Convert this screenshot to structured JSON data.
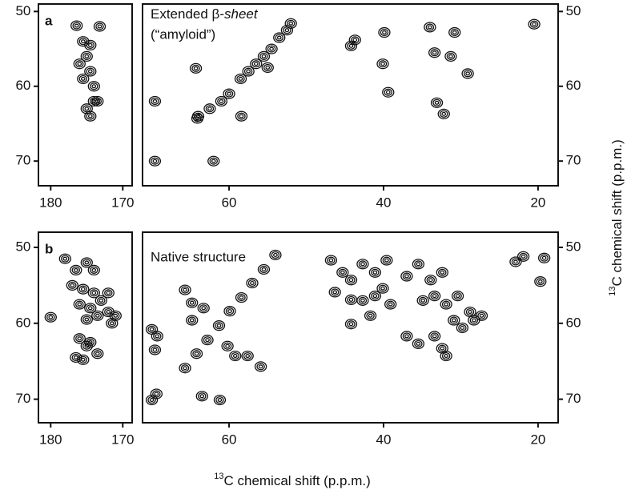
{
  "chart_data": [
    {
      "type": "contour",
      "panel_label": "a",
      "x": [
        176.4,
        175.5,
        175,
        174.5,
        175.5,
        174,
        176,
        174.5,
        173.2,
        174,
        175,
        174.5,
        173.5
      ],
      "y": [
        51.9,
        54,
        56,
        58,
        59,
        60,
        57,
        54.5,
        52,
        62,
        63,
        64,
        62
      ],
      "xlim": [
        181.7,
        168.7
      ],
      "xticks": [
        180,
        170
      ],
      "ylim": [
        49,
        73.3
      ],
      "yticks": [
        50,
        60,
        70
      ],
      "color": "#111111"
    },
    {
      "type": "contour",
      "annotation": [
        "Extended β-",
        "sheet",
        "(“amyloid”)"
      ],
      "ylabel": [
        "13",
        "C chemical shift (p.p.m.)"
      ],
      "x": [
        69.6,
        69.6,
        64.3,
        64.1,
        64,
        62.5,
        61,
        60,
        62,
        58.4,
        58.5,
        57.5,
        56.5,
        55.5,
        54.5,
        53.5,
        52.5,
        52,
        55,
        43.7,
        44.2,
        39.9,
        40.1,
        39.4,
        33.4,
        31.3,
        30.8,
        33.1,
        32.2,
        29.1,
        20.5,
        34
      ],
      "y": [
        62,
        70,
        57.6,
        64.3,
        64,
        63,
        62,
        61,
        70,
        64,
        59,
        58,
        57,
        56,
        55,
        53.5,
        52.5,
        51.6,
        57.5,
        53.8,
        54.6,
        52.8,
        57,
        60.8,
        55.5,
        56,
        52.8,
        62.2,
        63.7,
        58.3,
        51.7,
        52.1
      ],
      "xlim": [
        71.2,
        17.4
      ],
      "xticks": [
        60,
        40,
        20
      ],
      "ylim": [
        49,
        73.3
      ],
      "yticks": [
        50,
        60,
        70
      ],
      "color": "#111111"
    },
    {
      "type": "contour",
      "panel_label": "b",
      "x": [
        178,
        176.5,
        175,
        174,
        177,
        175.5,
        174,
        176,
        174.5,
        173,
        175,
        173.5,
        172,
        171,
        180,
        176,
        175,
        174.5,
        176.5,
        175.5,
        173.5,
        171.5,
        172
      ],
      "y": [
        51.5,
        53,
        52,
        53,
        55,
        55.5,
        56,
        57.5,
        58,
        57,
        59.5,
        59,
        58.5,
        59,
        59.2,
        62,
        63,
        62.5,
        64.5,
        64.8,
        64,
        60,
        56
      ],
      "xlim": [
        181.7,
        168.7
      ],
      "xticks": [
        180,
        170
      ],
      "ylim": [
        48,
        73.1
      ],
      "yticks": [
        50,
        60,
        70
      ],
      "color": "#111111"
    },
    {
      "type": "contour",
      "annotation": [
        "Native structure"
      ],
      "xlabel": [
        "13",
        "C chemical shift (p.p.m.)"
      ],
      "x": [
        65.7,
        64.2,
        62.8,
        61.3,
        59.9,
        58.4,
        57,
        55.5,
        54,
        70,
        69.3,
        69.6,
        69.4,
        70,
        65.7,
        64.8,
        64.8,
        63.3,
        63.5,
        61.2,
        60.2,
        59.2,
        57.6,
        55.9,
        46.8,
        45.3,
        44.2,
        42.7,
        41.1,
        46.3,
        44.2,
        42.7,
        41.1,
        40.1,
        39.1,
        41.7,
        44.2,
        39.6,
        37,
        35.5,
        33.9,
        32.4,
        33.4,
        34.9,
        31.9,
        30.4,
        28.8,
        27.3,
        30.9,
        29.8,
        37,
        35.5,
        33.4,
        32.4,
        31.9,
        28.3,
        22.9,
        21.9,
        19.2,
        19.7
      ],
      "y": [
        65.9,
        64,
        62.2,
        60.3,
        58.4,
        56.6,
        54.7,
        52.9,
        51,
        60.8,
        61.7,
        63.5,
        69.3,
        70.1,
        55.6,
        57.3,
        59.6,
        58,
        69.6,
        70.1,
        63,
        64.3,
        64.3,
        65.7,
        51.7,
        53.3,
        54.3,
        52.2,
        53.3,
        55.9,
        56.9,
        57,
        56.4,
        55.4,
        57.5,
        59,
        60.1,
        51.7,
        53.8,
        52.2,
        54.3,
        53.3,
        56.4,
        57,
        57.5,
        56.4,
        58.5,
        59,
        59.6,
        60.6,
        61.7,
        62.7,
        61.7,
        63.3,
        64.3,
        59.6,
        51.9,
        51.2,
        51.4,
        54.5
      ],
      "xlim": [
        71.2,
        17.4
      ],
      "xticks": [
        60,
        40,
        20
      ],
      "ylim": [
        48,
        73.1
      ],
      "yticks": [
        50,
        60,
        70
      ],
      "color": "#111111"
    }
  ]
}
